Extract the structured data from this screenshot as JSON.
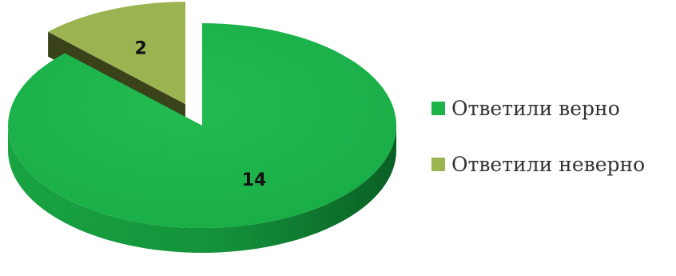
{
  "chart_data": {
    "type": "pie",
    "title": "",
    "categories": [
      "Ответили верно",
      "Ответили неверно"
    ],
    "values": [
      14,
      2
    ],
    "data_labels": [
      "14",
      "2"
    ],
    "exploded": [
      false,
      true
    ],
    "style": "3d",
    "colors": [
      "#1db349",
      "#9cb351"
    ],
    "legend": {
      "position": "right"
    }
  }
}
